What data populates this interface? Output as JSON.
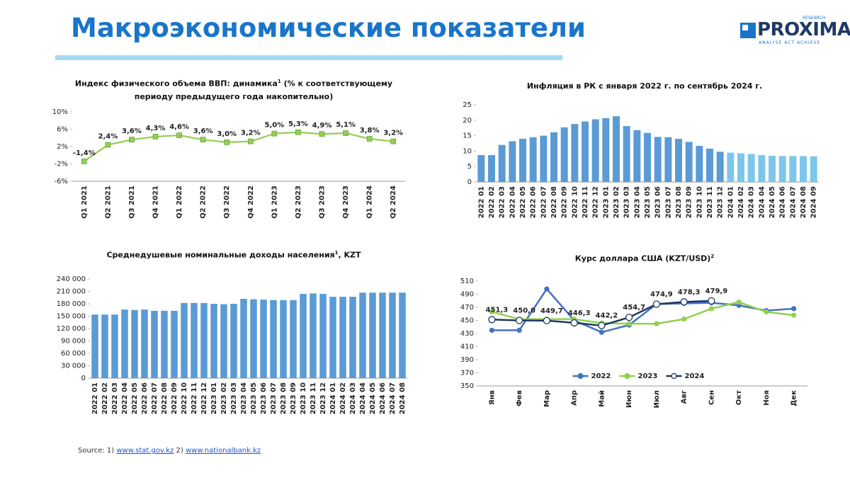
{
  "title": "Макроэкономические показатели",
  "logo": {
    "name": "PROXIMA",
    "tag": "RESEARCH",
    "motto": "ANALYSE ACT ACHIEVE"
  },
  "source": {
    "prefix": "Source: 1)",
    "link1": "www.stat.gov.kz",
    "middle": "2)",
    "link2": "www.nationalbank.kz"
  },
  "chart_data": [
    {
      "type": "line",
      "title": "Индекс физического объема ВВП: динамика",
      "title_sup": "1",
      "title_end": "(% к соответствующему периоду предыдущего года накопительно)",
      "categories": [
        "Q1 2021",
        "Q2 2021",
        "Q3 2021",
        "Q4 2021",
        "Q1 2022",
        "Q2 2022",
        "Q3 2022",
        "Q4 2022",
        "Q1 2023",
        "Q2 2023",
        "Q3 2023",
        "Q4 2023",
        "Q1 2024",
        "Q2 2024"
      ],
      "values": [
        -1.4,
        2.4,
        3.6,
        4.3,
        4.6,
        3.6,
        3.0,
        3.2,
        5.0,
        5.3,
        4.9,
        5.1,
        3.8,
        3.2
      ],
      "value_labels": [
        "-1,4%",
        "2,4%",
        "3,6%",
        "4,3%",
        "4,6%",
        "3,6%",
        "3,0%",
        "3,2%",
        "5,0%",
        "5,3%",
        "4,9%",
        "5,1%",
        "3,8%",
        "3,2%"
      ],
      "color": "#92d050",
      "marker": "square",
      "ylim": [
        -6,
        10
      ],
      "yticks": [
        {
          "value": -6,
          "label": "-6%"
        },
        {
          "value": -2,
          "label": "-2%"
        },
        {
          "value": 2,
          "label": "2%"
        },
        {
          "value": 6,
          "label": "6%"
        },
        {
          "value": 10,
          "label": "10%"
        }
      ]
    },
    {
      "type": "bar",
      "title": "Инфляция в РК с января 2022 г. по сентябрь 2024 г.",
      "categories": [
        "2022 01",
        "2022 02",
        "2022 03",
        "2022 04",
        "2022 05",
        "2022 06",
        "2022 07",
        "2022 08",
        "2022 09",
        "2022 10",
        "2022 11",
        "2022 12",
        "2023 01",
        "2023 02",
        "2023 03",
        "2023 04",
        "2023 05",
        "2023 06",
        "2023 07",
        "2023 08",
        "2023 09",
        "2023 10",
        "2023 11",
        "2023 12",
        "2024 01",
        "2024 02",
        "2024 03",
        "2024 04",
        "2024 05",
        "2024 06",
        "2024 07",
        "2024 08",
        "2024 09"
      ],
      "values": [
        8.7,
        8.7,
        12.0,
        13.2,
        14.0,
        14.5,
        15.0,
        16.1,
        17.7,
        18.8,
        19.6,
        20.3,
        20.7,
        21.3,
        18.1,
        16.8,
        15.9,
        14.6,
        14.5,
        14.0,
        13.0,
        11.7,
        10.8,
        9.8,
        9.5,
        9.3,
        9.1,
        8.7,
        8.5,
        8.4,
        8.4,
        8.4,
        8.3
      ],
      "colors": [
        "#5b9bd5",
        "#5b9bd5",
        "#5b9bd5",
        "#5b9bd5",
        "#5b9bd5",
        "#5b9bd5",
        "#5b9bd5",
        "#5b9bd5",
        "#5b9bd5",
        "#5b9bd5",
        "#5b9bd5",
        "#5b9bd5",
        "#5b9bd5",
        "#5b9bd5",
        "#5b9bd5",
        "#5b9bd5",
        "#5b9bd5",
        "#5b9bd5",
        "#5b9bd5",
        "#5b9bd5",
        "#5b9bd5",
        "#5b9bd5",
        "#5b9bd5",
        "#5b9bd5",
        "#7cc6ec",
        "#7cc6ec",
        "#7cc6ec",
        "#7cc6ec",
        "#7cc6ec",
        "#7cc6ec",
        "#7cc6ec",
        "#7cc6ec",
        "#7cc6ec"
      ],
      "ylim": [
        0,
        25
      ],
      "yticks": [
        0,
        5,
        10,
        15,
        20,
        25
      ]
    },
    {
      "type": "bar",
      "title": "Среднедушевые номинальные доходы населения",
      "title_sup": "1",
      "title_end": ", KZT",
      "categories": [
        "2022 01",
        "2022 02",
        "2022 03",
        "2022 04",
        "2022 05",
        "2022 06",
        "2022 07",
        "2022 08",
        "2022 09",
        "2022 10",
        "2022 11",
        "2022 12",
        "2023 01",
        "2023 02",
        "2023 03",
        "2023 04",
        "2023 05",
        "2023 06",
        "2023 07",
        "2023 08",
        "2023 09",
        "2023 10",
        "2023 11",
        "2023 12",
        "2024 01",
        "2024 02",
        "2024 03",
        "2024 04",
        "2024 05",
        "2024 06",
        "2024 07",
        "2024 08"
      ],
      "values": [
        154000,
        154000,
        154000,
        166000,
        165000,
        166000,
        163000,
        163000,
        163000,
        182000,
        182000,
        182000,
        180000,
        179000,
        180000,
        192000,
        191000,
        190000,
        189000,
        189000,
        189000,
        204000,
        205000,
        204000,
        197000,
        197000,
        197000,
        207000,
        207000,
        207000,
        207000,
        207000
      ],
      "color": "#5b9bd5",
      "ylim": [
        0,
        240000
      ],
      "yticks": [
        0,
        {
          "value": 30000,
          "label": "30 000"
        },
        {
          "value": 60000,
          "label": "60 000"
        },
        {
          "value": 90000,
          "label": "90 000"
        },
        {
          "value": 120000,
          "label": "120 000"
        },
        {
          "value": 150000,
          "label": "150 000"
        },
        {
          "value": 180000,
          "label": "180 000"
        },
        {
          "value": 210000,
          "label": "210 000"
        },
        {
          "value": 240000,
          "label": "240 000"
        }
      ]
    },
    {
      "type": "line",
      "title": "Курс доллара США (KZT/USD)",
      "title_sup": "2",
      "categories": [
        "Янв",
        "Фев",
        "Мар",
        "Апр",
        "Май",
        "Июн",
        "Июл",
        "Авг",
        "Сен",
        "Окт",
        "Ноя",
        "Дек"
      ],
      "series": [
        {
          "name": "2022",
          "color": "#4472c4",
          "values": [
            435,
            435,
            498,
            450,
            432,
            443,
            475,
            476,
            477,
            473,
            465,
            468
          ]
        },
        {
          "name": "2023",
          "color": "#92d050",
          "values": [
            463,
            452,
            452,
            452,
            446,
            445,
            445,
            452,
            468,
            478,
            463,
            458
          ]
        },
        {
          "name": "2024",
          "color": "#1f3864",
          "marker_fill": "#ffffff",
          "values": [
            451.3,
            450.0,
            449.7,
            446.3,
            442.2,
            454.7,
            474.9,
            478.3,
            479.9,
            null,
            null,
            null
          ],
          "value_labels": [
            "451,3",
            "450,0",
            "449,7",
            "446,3",
            "442,2",
            "454,7",
            "474,9",
            "478,3",
            "479,9",
            null,
            null,
            null
          ]
        }
      ],
      "ylim": [
        350,
        510
      ],
      "yticks": [
        350,
        370,
        390,
        410,
        430,
        450,
        470,
        490,
        510
      ],
      "legend": "bottom"
    }
  ]
}
